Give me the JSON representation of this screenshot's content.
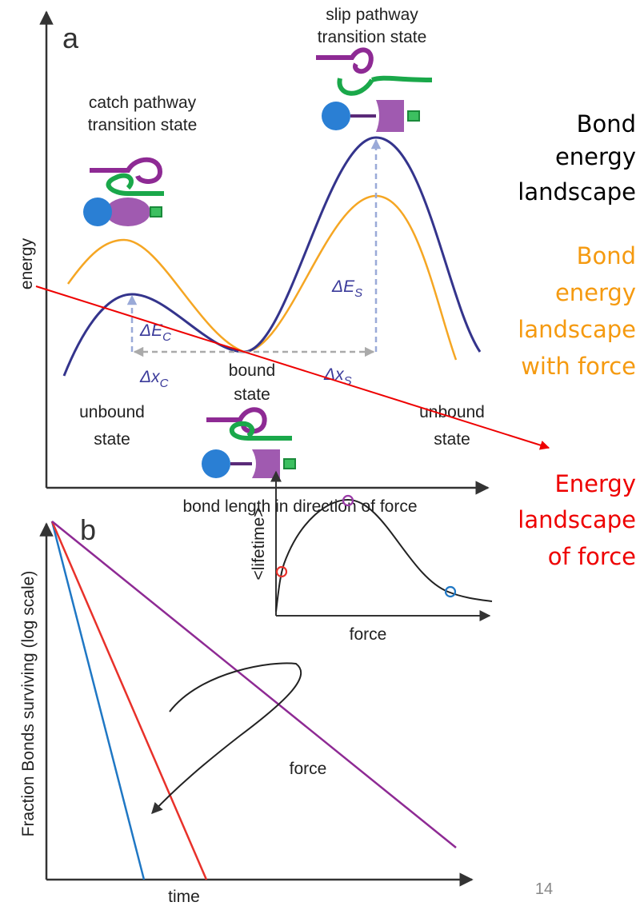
{
  "panel_a": {
    "letter": "a",
    "y_label": "energy",
    "x_label": "bond length in direction of force",
    "catch_label": [
      "catch pathway",
      "transition state"
    ],
    "slip_label": [
      "slip pathway",
      "transition state"
    ],
    "delta_e_c": {
      "main": "ΔE",
      "sub": "C"
    },
    "delta_x_c": {
      "main": "Δx",
      "sub": "C"
    },
    "delta_e_s": {
      "main": "ΔE",
      "sub": "S"
    },
    "delta_x_s": {
      "main": "Δx",
      "sub": "S"
    },
    "bound_label": [
      "bound",
      "state"
    ],
    "unbound_left": [
      "unbound",
      "state"
    ],
    "unbound_right": [
      "unbound",
      "state"
    ]
  },
  "legend": {
    "bond_landscape": [
      "Bond",
      "energy",
      "landscape"
    ],
    "with_force": [
      "Bond",
      "energy",
      "landscape",
      "with force"
    ],
    "force_landscape": [
      "Energy",
      "landscape",
      "of force"
    ]
  },
  "panel_b": {
    "letter": "b",
    "y_label": "Fraction Bonds surviving (log scale)",
    "x_label": "time",
    "inset_y_label": "<lifetime>",
    "inset_x_label": "force",
    "arrow_label": "force"
  },
  "page_number": "14"
}
